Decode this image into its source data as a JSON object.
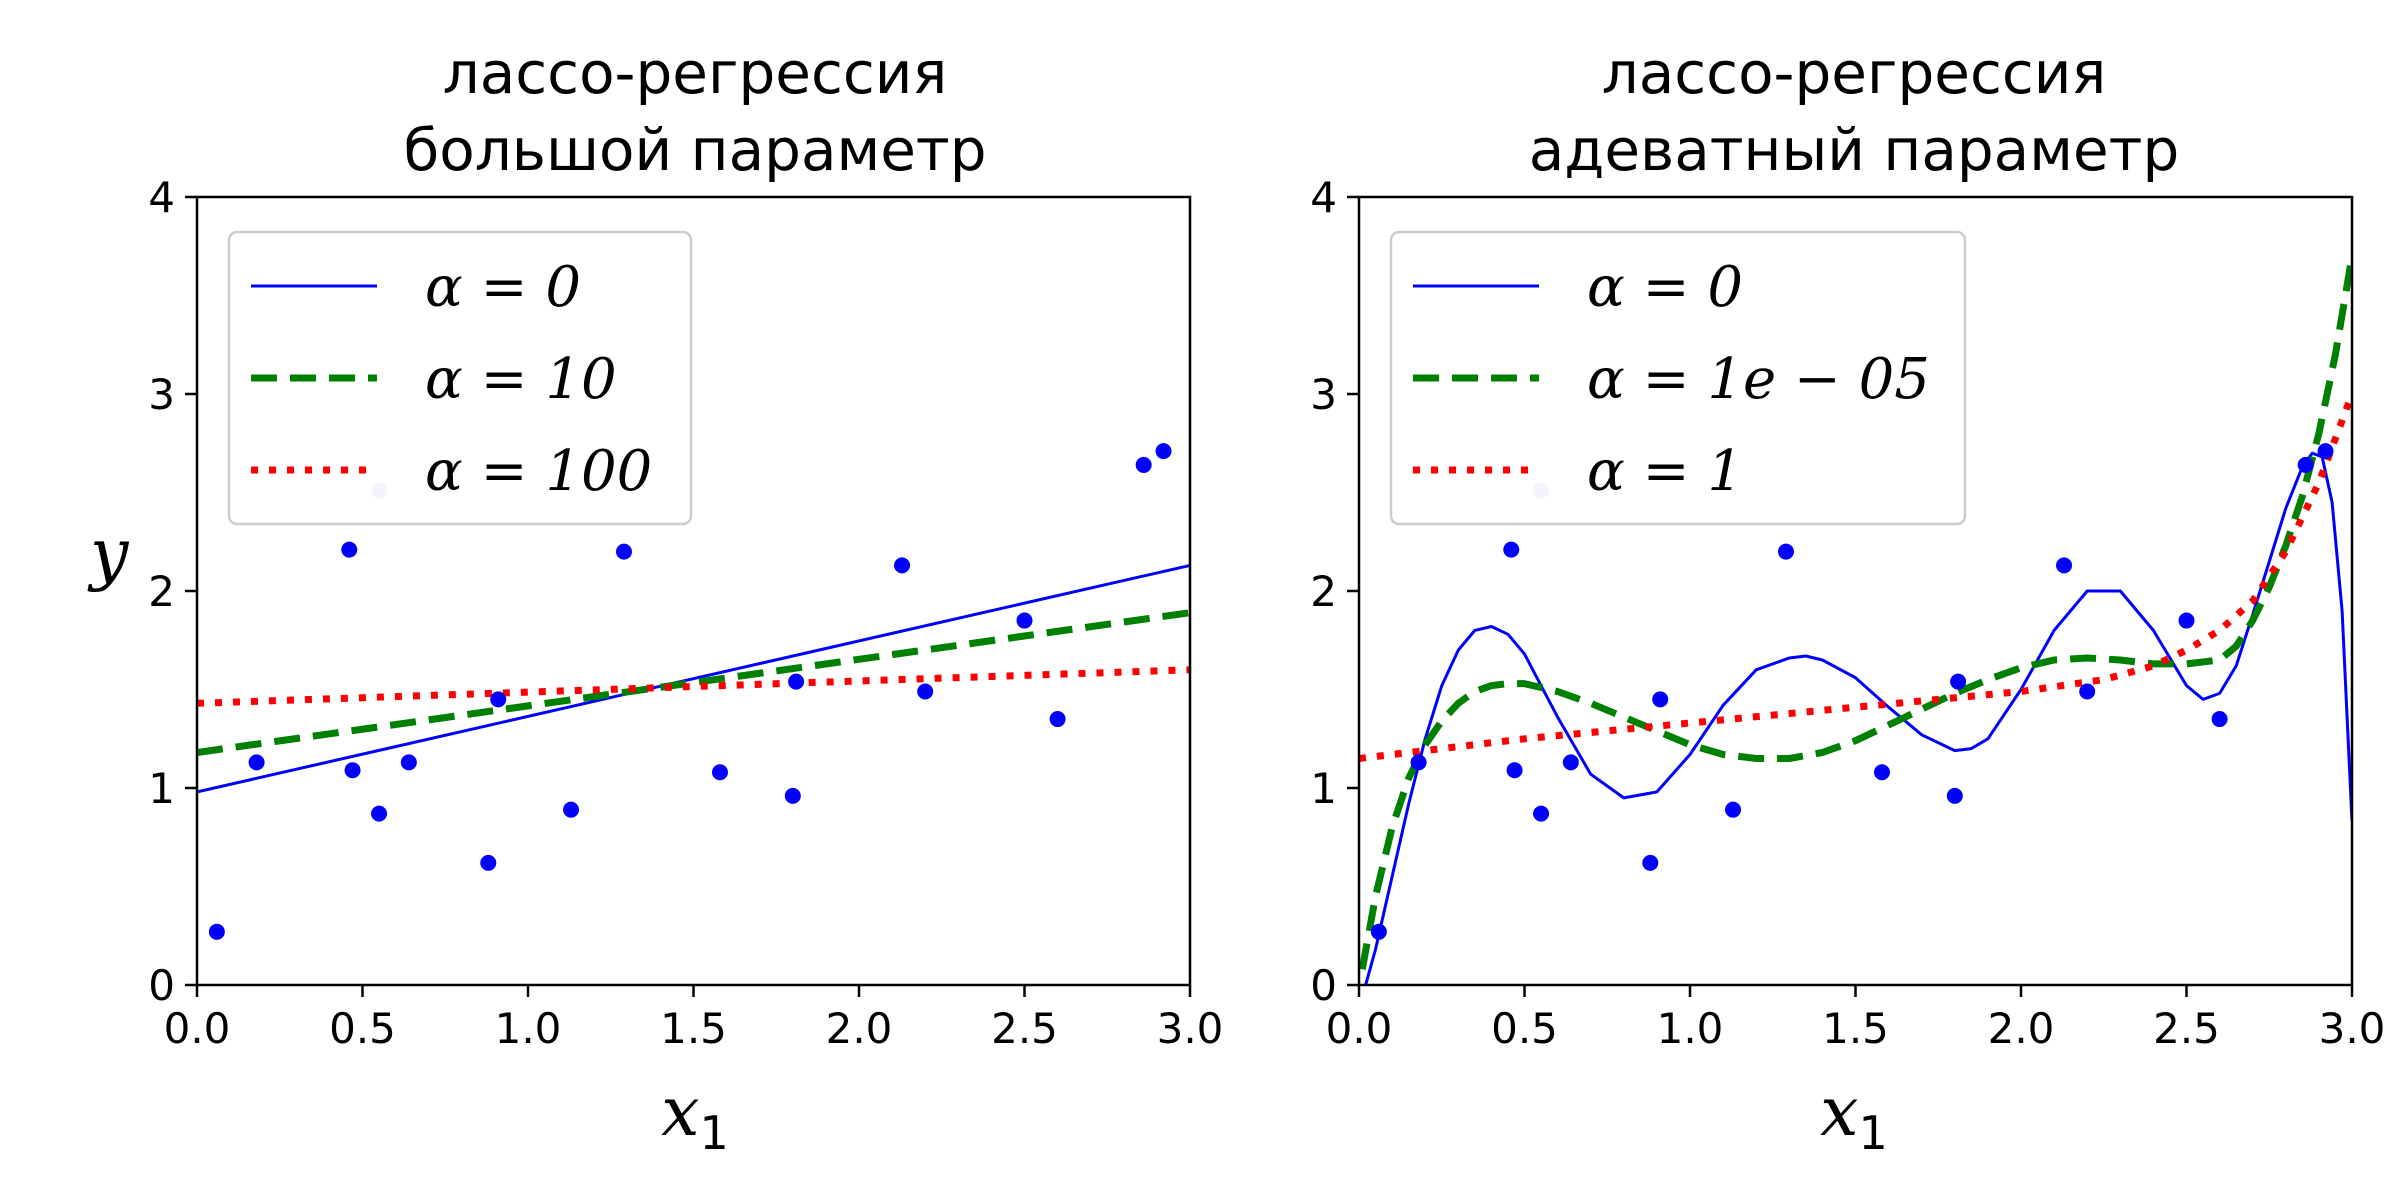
{
  "chart_data": [
    {
      "type": "line",
      "title": [
        "лассо-регрессия",
        "большой параметр"
      ],
      "xlabel": "x",
      "xlabel_sub": "1",
      "ylabel": "y",
      "xlim": [
        0,
        3
      ],
      "ylim": [
        0,
        4
      ],
      "xticks": [
        "0.0",
        "0.5",
        "1.0",
        "1.5",
        "2.0",
        "2.5",
        "3.0"
      ],
      "yticks": [
        "0",
        "1",
        "2",
        "3",
        "4"
      ],
      "grid": false,
      "legend_position": "top-left",
      "points": {
        "color": "#0000ff",
        "x": [
          0.06,
          0.18,
          0.46,
          0.47,
          0.55,
          0.64,
          0.88,
          0.91,
          1.13,
          1.29,
          1.58,
          1.8,
          1.81,
          2.13,
          2.2,
          2.5,
          2.6,
          2.86,
          2.92
        ],
        "y": [
          0.27,
          1.13,
          2.21,
          1.09,
          0.87,
          1.13,
          0.62,
          1.45,
          0.89,
          2.2,
          1.08,
          0.96,
          1.54,
          2.13,
          1.49,
          1.85,
          1.35,
          2.64,
          2.71
        ]
      },
      "faded_point": {
        "x": 0.55,
        "y": 2.51,
        "color": "#c8c8f0"
      },
      "series": [
        {
          "name": "α = 0",
          "color": "#0000ff",
          "style": "solid",
          "x": [
            0,
            3
          ],
          "y": [
            0.98,
            2.13
          ]
        },
        {
          "name": "α = 10",
          "color": "#008000",
          "style": "dashed",
          "x": [
            0,
            3
          ],
          "y": [
            1.18,
            1.89
          ]
        },
        {
          "name": "α = 100",
          "color": "#ff0000",
          "style": "dotted",
          "x": [
            0,
            3
          ],
          "y": [
            1.43,
            1.6
          ]
        }
      ]
    },
    {
      "type": "line",
      "title": [
        "лассо-регрессия",
        "адеватный параметр"
      ],
      "xlabel": "x",
      "xlabel_sub": "1",
      "ylabel": "",
      "xlim": [
        0,
        3
      ],
      "ylim": [
        0,
        4
      ],
      "xticks": [
        "0.0",
        "0.5",
        "1.0",
        "1.5",
        "2.0",
        "2.5",
        "3.0"
      ],
      "yticks": [
        "0",
        "1",
        "2",
        "3",
        "4"
      ],
      "grid": false,
      "legend_position": "top-left",
      "points": {
        "color": "#0000ff",
        "x": [
          0.06,
          0.18,
          0.46,
          0.47,
          0.55,
          0.64,
          0.88,
          0.91,
          1.13,
          1.29,
          1.58,
          1.8,
          1.81,
          2.13,
          2.2,
          2.5,
          2.6,
          2.86,
          2.92
        ],
        "y": [
          0.27,
          1.13,
          2.21,
          1.09,
          0.87,
          1.13,
          0.62,
          1.45,
          0.89,
          2.2,
          1.08,
          0.96,
          1.54,
          2.13,
          1.49,
          1.85,
          1.35,
          2.64,
          2.71
        ]
      },
      "faded_point": {
        "x": 0.55,
        "y": 2.51,
        "color": "#c8c8f0"
      },
      "series": [
        {
          "name": "α = 0",
          "color": "#0000ff",
          "style": "solid",
          "x": [
            0.02,
            0.05,
            0.1,
            0.15,
            0.2,
            0.25,
            0.3,
            0.35,
            0.4,
            0.45,
            0.5,
            0.55,
            0.6,
            0.7,
            0.8,
            0.9,
            1.0,
            1.1,
            1.2,
            1.3,
            1.35,
            1.4,
            1.5,
            1.6,
            1.7,
            1.8,
            1.85,
            1.9,
            2.0,
            2.1,
            2.2,
            2.3,
            2.4,
            2.5,
            2.55,
            2.6,
            2.65,
            2.7,
            2.75,
            2.8,
            2.85,
            2.88,
            2.91,
            2.94,
            2.97,
            3.0
          ],
          "y": [
            0.0,
            0.18,
            0.55,
            0.92,
            1.25,
            1.52,
            1.7,
            1.8,
            1.82,
            1.78,
            1.68,
            1.52,
            1.36,
            1.07,
            0.95,
            0.98,
            1.17,
            1.42,
            1.6,
            1.66,
            1.67,
            1.65,
            1.56,
            1.41,
            1.27,
            1.19,
            1.2,
            1.25,
            1.5,
            1.8,
            2.0,
            2.0,
            1.8,
            1.52,
            1.45,
            1.48,
            1.62,
            1.88,
            2.15,
            2.42,
            2.63,
            2.7,
            2.68,
            2.45,
            1.9,
            0.83
          ]
        },
        {
          "name": "α = 1e − 05",
          "color": "#008000",
          "style": "dashed",
          "x": [
            0.01,
            0.05,
            0.1,
            0.15,
            0.2,
            0.25,
            0.3,
            0.35,
            0.4,
            0.45,
            0.5,
            0.6,
            0.7,
            0.8,
            0.9,
            1.0,
            1.1,
            1.2,
            1.3,
            1.4,
            1.5,
            1.6,
            1.7,
            1.8,
            1.9,
            2.0,
            2.1,
            2.2,
            2.3,
            2.4,
            2.5,
            2.6,
            2.65,
            2.7,
            2.75,
            2.8,
            2.85,
            2.9,
            2.95,
            3.0
          ],
          "y": [
            0.08,
            0.45,
            0.8,
            1.05,
            1.22,
            1.34,
            1.43,
            1.49,
            1.52,
            1.53,
            1.53,
            1.49,
            1.43,
            1.36,
            1.29,
            1.22,
            1.17,
            1.15,
            1.15,
            1.18,
            1.24,
            1.32,
            1.4,
            1.48,
            1.55,
            1.61,
            1.65,
            1.66,
            1.65,
            1.63,
            1.63,
            1.65,
            1.72,
            1.85,
            2.02,
            2.23,
            2.48,
            2.8,
            3.2,
            3.7
          ]
        },
        {
          "name": "α = 1",
          "color": "#ff0000",
          "style": "dotted",
          "x": [
            0.0,
            0.25,
            0.5,
            0.75,
            1.0,
            1.25,
            1.5,
            1.75,
            2.0,
            2.25,
            2.4,
            2.5,
            2.6,
            2.7,
            2.8,
            2.9,
            3.0
          ],
          "y": [
            1.15,
            1.2,
            1.25,
            1.29,
            1.33,
            1.37,
            1.41,
            1.45,
            1.49,
            1.55,
            1.62,
            1.7,
            1.8,
            1.95,
            2.2,
            2.55,
            3.0
          ]
        }
      ]
    }
  ]
}
